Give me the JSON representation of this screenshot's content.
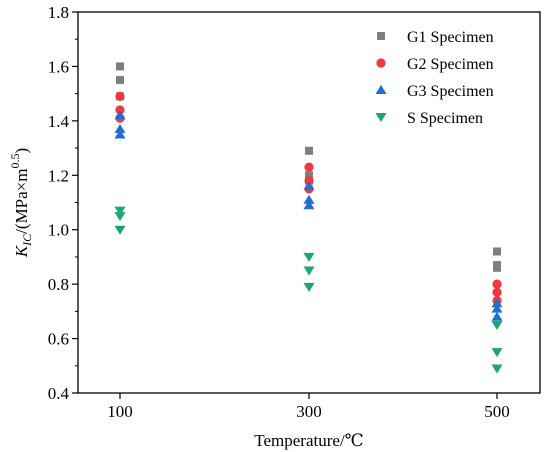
{
  "chart_data": {
    "type": "scatter",
    "xlabel": "Temperature/℃",
    "ylabel": {
      "k": "K",
      "k_sub": "IC",
      "units": "/(MPa×m",
      "exp": "0.5",
      "close": ")"
    },
    "categories": [
      "100",
      "300",
      "500"
    ],
    "ylim": [
      0.4,
      1.8
    ],
    "yticks": [
      "0.4",
      "0.6",
      "0.8",
      "1.0",
      "1.2",
      "1.4",
      "1.6",
      "1.8"
    ],
    "grid": false,
    "legend_position": "top-right",
    "series": [
      {
        "name": "G1 Specimen",
        "marker": "square",
        "color": "#7f7f7f",
        "points": [
          {
            "x": "100",
            "y": 1.6
          },
          {
            "x": "100",
            "y": 1.55
          },
          {
            "x": "100",
            "y": 1.49
          },
          {
            "x": "300",
            "y": 1.29
          },
          {
            "x": "300",
            "y": 1.2
          },
          {
            "x": "300",
            "y": 1.18
          },
          {
            "x": "500",
            "y": 0.92
          },
          {
            "x": "500",
            "y": 0.87
          },
          {
            "x": "500",
            "y": 0.86
          }
        ]
      },
      {
        "name": "G2 Specimen",
        "marker": "circle",
        "color": "#f0393f",
        "points": [
          {
            "x": "100",
            "y": 1.49
          },
          {
            "x": "100",
            "y": 1.44
          },
          {
            "x": "100",
            "y": 1.41
          },
          {
            "x": "300",
            "y": 1.23
          },
          {
            "x": "300",
            "y": 1.18
          },
          {
            "x": "300",
            "y": 1.15
          },
          {
            "x": "500",
            "y": 0.8
          },
          {
            "x": "500",
            "y": 0.77
          },
          {
            "x": "500",
            "y": 0.74
          }
        ]
      },
      {
        "name": "G3 Specimen",
        "marker": "triangle-up",
        "color": "#1f6fd1",
        "points": [
          {
            "x": "100",
            "y": 1.42
          },
          {
            "x": "100",
            "y": 1.37
          },
          {
            "x": "100",
            "y": 1.35
          },
          {
            "x": "300",
            "y": 1.16
          },
          {
            "x": "300",
            "y": 1.11
          },
          {
            "x": "300",
            "y": 1.09
          },
          {
            "x": "500",
            "y": 0.73
          },
          {
            "x": "500",
            "y": 0.71
          },
          {
            "x": "500",
            "y": 0.68
          }
        ]
      },
      {
        "name": "S Specimen",
        "marker": "triangle-down",
        "color": "#19a96b",
        "points": [
          {
            "x": "100",
            "y": 1.07
          },
          {
            "x": "100",
            "y": 1.05
          },
          {
            "x": "100",
            "y": 1.0
          },
          {
            "x": "300",
            "y": 0.9
          },
          {
            "x": "300",
            "y": 0.85
          },
          {
            "x": "300",
            "y": 0.79
          },
          {
            "x": "500",
            "y": 0.65
          },
          {
            "x": "500",
            "y": 0.55
          },
          {
            "x": "500",
            "y": 0.49
          }
        ]
      }
    ]
  }
}
